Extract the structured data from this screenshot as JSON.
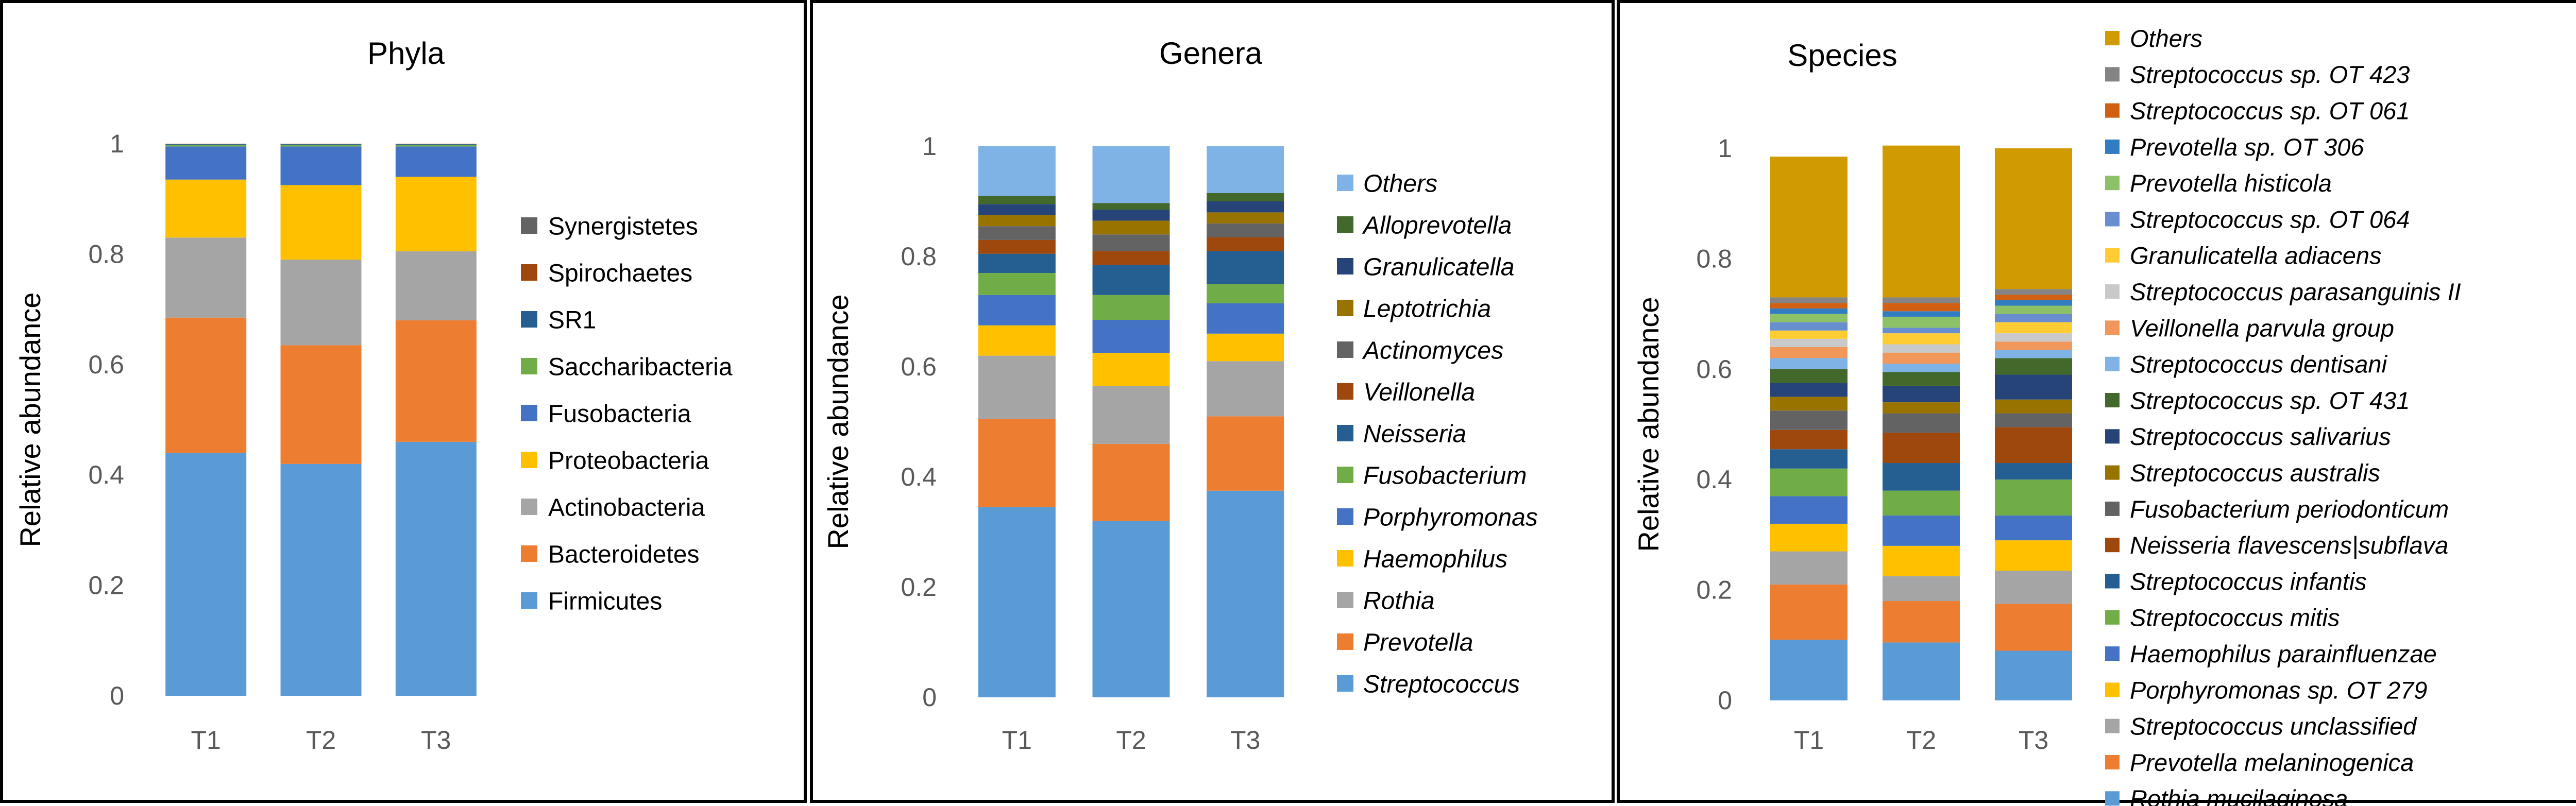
{
  "chart_data": [
    {
      "type": "bar",
      "stacked": true,
      "title": "Phyla",
      "xlabel": "",
      "ylabel": "Relative abundance",
      "ylim": [
        0,
        1
      ],
      "yticks": [
        "0",
        "0.2",
        "0.4",
        "0.6",
        "0.8",
        "1"
      ],
      "categories": [
        "T1",
        "T2",
        "T3"
      ],
      "legend": "right",
      "legend_italic": false,
      "grid": false,
      "series": [
        {
          "name": "Firmicutes",
          "color": "#5B9BD5",
          "values": [
            0.44,
            0.42,
            0.46
          ]
        },
        {
          "name": "Bacteroidetes",
          "color": "#ED7D31",
          "values": [
            0.245,
            0.215,
            0.22
          ]
        },
        {
          "name": "Actinobacteria",
          "color": "#A5A5A5",
          "values": [
            0.145,
            0.155,
            0.125
          ]
        },
        {
          "name": "Proteobacteria",
          "color": "#FFC000",
          "values": [
            0.105,
            0.135,
            0.135
          ]
        },
        {
          "name": "Fusobacteria",
          "color": "#4472C4",
          "values": [
            0.06,
            0.07,
            0.055
          ]
        },
        {
          "name": "Saccharibacteria",
          "color": "#70AD47",
          "values": [
            0.003,
            0.003,
            0.003
          ]
        },
        {
          "name": "SR1",
          "color": "#255E91",
          "values": [
            0.001,
            0.001,
            0.001
          ]
        },
        {
          "name": "Spirochaetes",
          "color": "#9E480E",
          "values": [
            0.001,
            0.001,
            0.001
          ]
        },
        {
          "name": "Synergistetes",
          "color": "#636363",
          "values": [
            0.0,
            0.0,
            0.0
          ]
        }
      ]
    },
    {
      "type": "bar",
      "stacked": true,
      "title": "Genera",
      "xlabel": "",
      "ylabel": "Relative abundance",
      "ylim": [
        0,
        1
      ],
      "yticks": [
        "0",
        "0.2",
        "0.4",
        "0.6",
        "0.8",
        "1"
      ],
      "categories": [
        "T1",
        "T2",
        "T3"
      ],
      "legend": "right",
      "legend_italic": true,
      "grid": false,
      "series": [
        {
          "name": "Streptococcus",
          "color": "#5B9BD5",
          "values": [
            0.345,
            0.32,
            0.375
          ]
        },
        {
          "name": "Prevotella",
          "color": "#ED7D31",
          "values": [
            0.16,
            0.14,
            0.135
          ]
        },
        {
          "name": "Rothia",
          "color": "#A5A5A5",
          "values": [
            0.115,
            0.105,
            0.1
          ]
        },
        {
          "name": "Haemophilus",
          "color": "#FFC000",
          "values": [
            0.055,
            0.06,
            0.05
          ]
        },
        {
          "name": "Porphyromonas",
          "color": "#4472C4",
          "values": [
            0.055,
            0.06,
            0.055
          ]
        },
        {
          "name": "Fusobacterium",
          "color": "#70AD47",
          "values": [
            0.04,
            0.045,
            0.035
          ]
        },
        {
          "name": "Neisseria",
          "color": "#255E91",
          "values": [
            0.035,
            0.055,
            0.06
          ]
        },
        {
          "name": "Veillonella",
          "color": "#9E480E",
          "values": [
            0.025,
            0.025,
            0.025
          ]
        },
        {
          "name": "Actinomyces",
          "color": "#636363",
          "values": [
            0.025,
            0.03,
            0.025
          ]
        },
        {
          "name": "Leptotrichia",
          "color": "#997300",
          "values": [
            0.02,
            0.025,
            0.02
          ]
        },
        {
          "name": "Granulicatella",
          "color": "#264478",
          "values": [
            0.02,
            0.02,
            0.02
          ]
        },
        {
          "name": "Alloprevotella",
          "color": "#43682B",
          "values": [
            0.015,
            0.012,
            0.015
          ]
        },
        {
          "name": "Others",
          "color": "#7FB2E5",
          "values": [
            0.09,
            0.103,
            0.085
          ]
        }
      ]
    },
    {
      "type": "bar",
      "stacked": true,
      "title": "Species",
      "xlabel": "",
      "ylabel": "Relative abundance",
      "ylim": [
        0,
        1
      ],
      "yticks": [
        "0",
        "0.2",
        "0.4",
        "0.6",
        "0.8",
        "1"
      ],
      "categories": [
        "T1",
        "T2",
        "T3"
      ],
      "legend": "right",
      "legend_italic": true,
      "grid": false,
      "series": [
        {
          "name": "Rothia mucilaginosa",
          "color": "#5B9BD5",
          "values": [
            0.11,
            0.105,
            0.09
          ]
        },
        {
          "name": "Prevotella melaninogenica",
          "color": "#ED7D31",
          "values": [
            0.1,
            0.075,
            0.085
          ]
        },
        {
          "name": "Streptococcus unclassified",
          "color": "#A5A5A5",
          "values": [
            0.06,
            0.045,
            0.06
          ]
        },
        {
          "name": "Porphyromonas sp. OT 279",
          "color": "#FFC000",
          "values": [
            0.05,
            0.055,
            0.055
          ]
        },
        {
          "name": "Haemophilus parainfluenzae",
          "color": "#4472C4",
          "values": [
            0.05,
            0.055,
            0.045
          ]
        },
        {
          "name": "Streptococcus mitis",
          "color": "#70AD47",
          "values": [
            0.05,
            0.045,
            0.065
          ]
        },
        {
          "name": "Streptococcus infantis",
          "color": "#255E91",
          "values": [
            0.035,
            0.05,
            0.03
          ]
        },
        {
          "name": "Neisseria flavescens|subflava",
          "color": "#9E480E",
          "values": [
            0.035,
            0.055,
            0.065
          ]
        },
        {
          "name": "Fusobacterium periodonticum",
          "color": "#636363",
          "values": [
            0.035,
            0.035,
            0.025
          ]
        },
        {
          "name": "Streptococcus australis",
          "color": "#997300",
          "values": [
            0.025,
            0.02,
            0.025
          ]
        },
        {
          "name": "Streptococcus salivarius",
          "color": "#264478",
          "values": [
            0.025,
            0.03,
            0.045
          ]
        },
        {
          "name": "Streptococcus sp. OT 431",
          "color": "#43682B",
          "values": [
            0.025,
            0.025,
            0.03
          ]
        },
        {
          "name": "Streptococcus dentisani",
          "color": "#7FB2E5",
          "values": [
            0.02,
            0.015,
            0.015
          ]
        },
        {
          "name": "Veillonella parvula group",
          "color": "#F1975A",
          "values": [
            0.02,
            0.02,
            0.015
          ]
        },
        {
          "name": "Streptococcus parasanguinis II",
          "color": "#C9C9C9",
          "values": [
            0.015,
            0.015,
            0.015
          ]
        },
        {
          "name": "Granulicatella adiacens",
          "color": "#FFCD33",
          "values": [
            0.015,
            0.02,
            0.02
          ]
        },
        {
          "name": "Streptococcus sp. OT 064",
          "color": "#698ED0",
          "values": [
            0.015,
            0.01,
            0.015
          ]
        },
        {
          "name": "Prevotella histicola",
          "color": "#8CC168",
          "values": [
            0.015,
            0.02,
            0.015
          ]
        },
        {
          "name": "Prevotella sp. OT 306",
          "color": "#327DC2",
          "values": [
            0.01,
            0.01,
            0.01
          ]
        },
        {
          "name": "Streptococcus sp. OT 061",
          "color": "#D26012",
          "values": [
            0.01,
            0.015,
            0.01
          ]
        },
        {
          "name": "Streptococcus sp. OT 423",
          "color": "#848484",
          "values": [
            0.01,
            0.01,
            0.01
          ]
        },
        {
          "name": "Others",
          "color": "#D09B00",
          "values": [
            0.255,
            0.275,
            0.255
          ]
        }
      ]
    }
  ]
}
